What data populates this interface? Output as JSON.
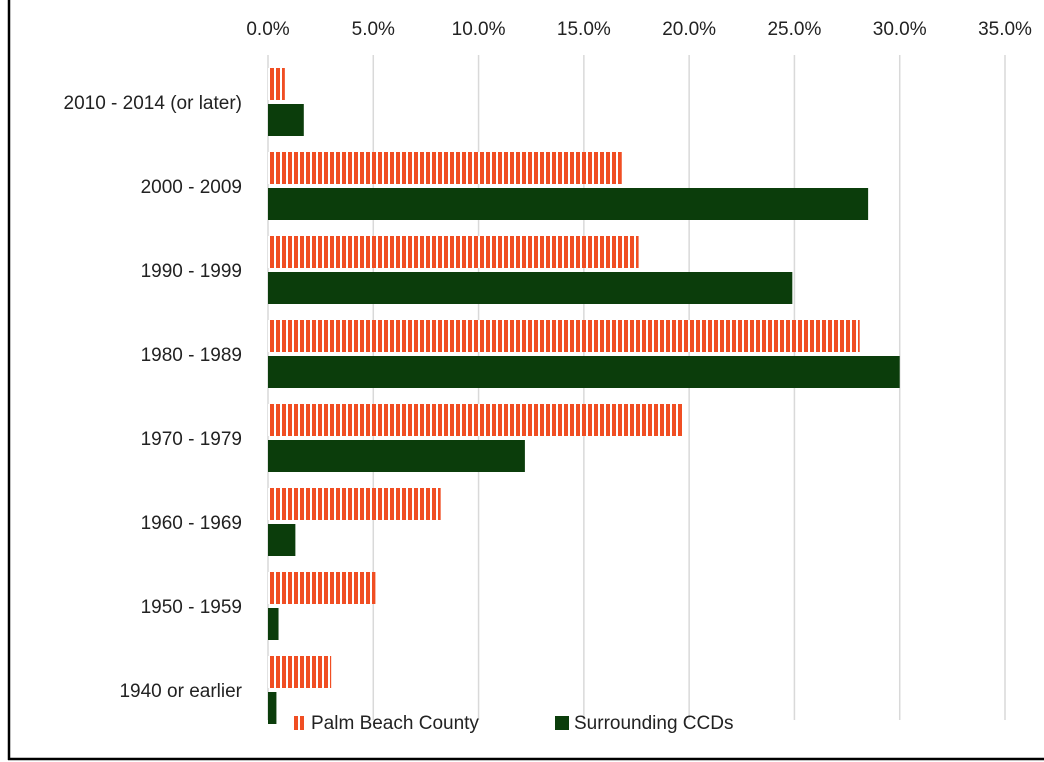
{
  "chart_data": {
    "type": "hbar",
    "categories": [
      "2010 - 2014 (or later)",
      "2000 - 2009",
      "1990 - 1999",
      "1980 - 1989",
      "1970 - 1979",
      "1960 - 1969",
      "1950 - 1959",
      "1940 or earlier"
    ],
    "series": [
      {
        "name": "Palm Beach County",
        "color": "#f04e23",
        "pattern": "vertical-stripes",
        "values": [
          0.8,
          16.8,
          17.6,
          28.1,
          19.7,
          8.2,
          5.1,
          3.0
        ]
      },
      {
        "name": "Surrounding CCDs",
        "color": "#0b3d0b",
        "values": [
          1.7,
          28.5,
          24.9,
          30.0,
          12.2,
          1.3,
          0.5,
          0.4
        ]
      }
    ],
    "xlim": [
      0,
      35
    ],
    "xticks": [
      {
        "value": 0,
        "label": "0.0%"
      },
      {
        "value": 5,
        "label": "5.0%"
      },
      {
        "value": 10,
        "label": "10.0%"
      },
      {
        "value": 15,
        "label": "15.0%"
      },
      {
        "value": 20,
        "label": "20.0%"
      },
      {
        "value": 25,
        "label": "25.0%"
      },
      {
        "value": 30,
        "label": "30.0%"
      },
      {
        "value": 35,
        "label": "35.0%"
      }
    ],
    "grid": true,
    "legend": "bottom"
  }
}
